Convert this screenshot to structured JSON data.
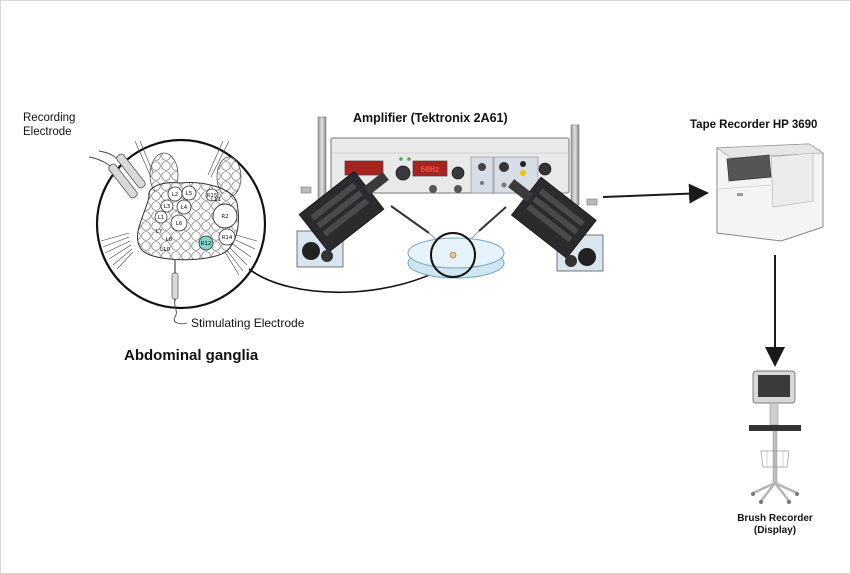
{
  "labels": {
    "amplifier": "Amplifier (Tektronix 2A61)",
    "tape_recorder": "Tape Recorder HP 3690",
    "recording_electrode_line1": "Recording",
    "recording_electrode_line2": "Electrode",
    "stimulating_electrode": "Stimulating Electrode",
    "abdominal_ganglia": "Abdominal ganglia",
    "brush_recorder_line1": "Brush Recorder",
    "brush_recorder_line2": "(Display)"
  },
  "amplifier_display": "60Hz",
  "neuron_labels": [
    "L2",
    "L5",
    "R15",
    "L3",
    "L4",
    "R2",
    "L1",
    "L6",
    "R14",
    "L7",
    "L8",
    "L10",
    "L11",
    "R12"
  ],
  "colors": {
    "arrow": "#1a1a1a",
    "display_red": "#a8231f",
    "display_digits": "#ff6a5a",
    "dish_blue": "#cfe6f2",
    "highlight_neuron": "#7fd6cf",
    "amplifier_panel": "#e9e9ea",
    "manipulator": "#2b2b2d"
  }
}
